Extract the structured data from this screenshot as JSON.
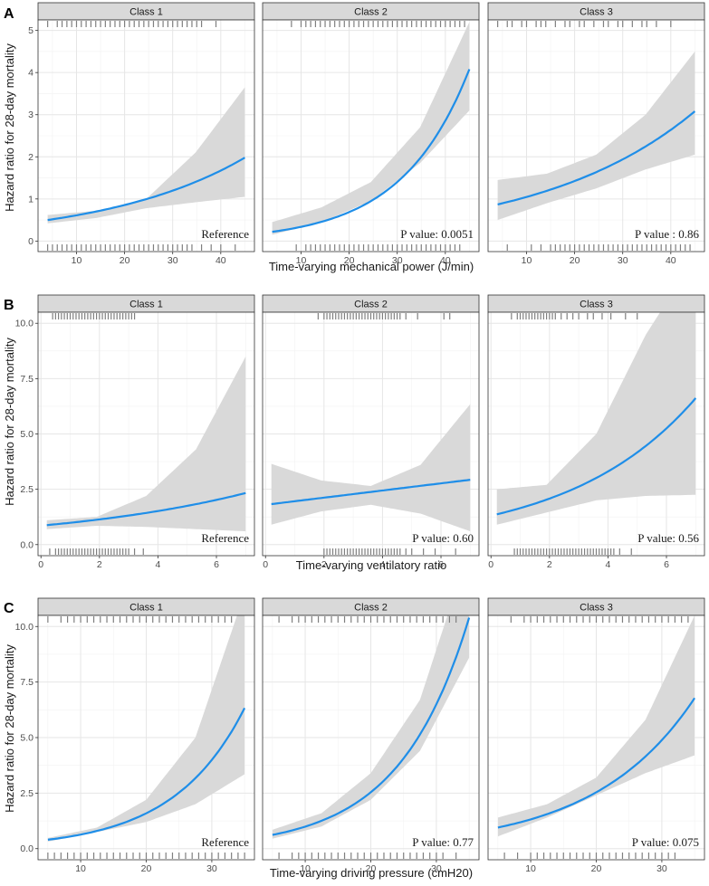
{
  "colors": {
    "line": "#1f8ee8",
    "band": "#d9d9d9",
    "rug": "#7f7f7f",
    "strip_bg": "#d9d9d9",
    "grid_major": "#e6e6e6",
    "grid_minor": "#f2f2f2",
    "panel_border": "#333333"
  },
  "chart_data": [
    {
      "panel": "A",
      "type": "line",
      "ylabel": "Hazard ratio for 28-day mortality",
      "xlabel": "Time-varying mechanical power (J/min)",
      "xlim": [
        2,
        47
      ],
      "ylim": [
        -0.25,
        5.25
      ],
      "x_ticks": [
        10,
        20,
        30,
        40
      ],
      "y_ticks": [
        0,
        1,
        2,
        3,
        4,
        5
      ],
      "y_tick_labels": [
        "0",
        "1",
        "2",
        "3",
        "4",
        "5"
      ],
      "facets": [
        {
          "title": "Class 1",
          "annotation": "Reference",
          "x_range": [
            4,
            45
          ],
          "curve": {
            "y0": 0.5,
            "y1": 1.98,
            "shape": "exp"
          },
          "band": {
            "lower": [
              0.42,
              0.55,
              0.78,
              0.92,
              1.05
            ],
            "upper": [
              0.62,
              0.72,
              1.0,
              2.1,
              3.65
            ]
          },
          "rug_top": [
            4,
            6,
            7,
            8,
            9,
            10,
            11,
            12,
            13,
            14,
            15,
            16,
            17,
            18,
            19,
            20,
            21,
            22,
            23,
            24,
            25,
            26,
            27,
            28,
            29,
            30,
            31,
            32,
            33,
            34,
            35,
            36,
            39
          ],
          "rug_bottom": [
            4,
            5,
            6,
            7,
            8,
            9,
            10,
            11,
            12,
            13,
            14,
            15,
            16,
            17,
            18,
            19,
            20,
            21,
            22,
            23,
            24,
            25,
            26,
            27,
            28,
            29,
            30,
            31,
            32,
            33,
            34,
            36,
            38,
            40,
            43
          ]
        },
        {
          "title": "Class 2",
          "annotation": "P value: 0.0051",
          "x_range": [
            4,
            45
          ],
          "curve": {
            "y0": 0.22,
            "y1": 4.08,
            "shape": "exp"
          },
          "band": {
            "lower": [
              0.15,
              0.45,
              0.95,
              1.85,
              3.1
            ],
            "upper": [
              0.45,
              0.8,
              1.4,
              2.7,
              5.2
            ]
          },
          "rug_top": [
            8,
            10,
            11,
            12,
            13,
            14,
            15,
            16,
            17,
            18,
            19,
            20,
            21,
            22,
            23,
            24,
            25,
            26,
            27,
            28,
            29,
            30,
            31,
            32,
            33,
            34,
            35,
            36,
            37,
            38,
            39,
            40,
            41,
            42,
            43,
            44
          ],
          "rug_bottom": [
            9,
            11,
            12,
            13,
            14,
            15,
            16,
            17,
            18,
            19,
            20,
            21,
            22,
            23,
            24,
            25,
            26,
            27,
            28,
            29,
            30,
            31,
            32,
            33,
            34,
            35,
            36,
            37,
            38,
            39,
            40,
            41,
            42,
            43
          ]
        },
        {
          "title": "Class 3",
          "annotation": "P value : 0.86",
          "x_range": [
            4,
            45
          ],
          "curve": {
            "y0": 0.87,
            "y1": 3.08,
            "shape": "exp"
          },
          "band": {
            "lower": [
              0.5,
              0.9,
              1.25,
              1.7,
              2.05
            ],
            "upper": [
              1.45,
              1.6,
              2.05,
              3.0,
              4.5
            ]
          },
          "rug_top": [
            4,
            6,
            7,
            9,
            10,
            12,
            13,
            14,
            16,
            18,
            19,
            21,
            22,
            24,
            26,
            27,
            29,
            30,
            32,
            34,
            35,
            37,
            40
          ],
          "rug_bottom": [
            6,
            11,
            13,
            15,
            16,
            17,
            18,
            19,
            20,
            21,
            22,
            23,
            24,
            25,
            26,
            27,
            28,
            29,
            30,
            31,
            32,
            33,
            34,
            35,
            36,
            37,
            38,
            39,
            40,
            41,
            42,
            43,
            44
          ]
        }
      ]
    },
    {
      "panel": "B",
      "type": "line",
      "ylabel": "Hazard ratio for 28-day mortality",
      "xlabel": "Time-varying ventilatory ratio",
      "xlim": [
        -0.1,
        7.3
      ],
      "ylim": [
        -0.5,
        10.5
      ],
      "x_ticks": [
        0,
        2,
        4,
        6
      ],
      "y_ticks": [
        0,
        2.5,
        5,
        7.5,
        10
      ],
      "y_tick_labels": [
        "0.0",
        "2.5",
        "5.0",
        "7.5",
        "10.0"
      ],
      "facets": [
        {
          "title": "Class 1",
          "annotation": "Reference",
          "x_range": [
            0.2,
            7
          ],
          "curve": {
            "y0": 0.88,
            "y1": 2.33,
            "shape": "exp"
          },
          "band": {
            "lower": [
              0.7,
              0.85,
              0.8,
              0.7,
              0.6
            ],
            "upper": [
              1.1,
              1.25,
              2.2,
              4.3,
              8.5
            ]
          },
          "rug_top": [
            0.4,
            0.5,
            0.6,
            0.7,
            0.8,
            0.9,
            1.0,
            1.1,
            1.2,
            1.3,
            1.4,
            1.5,
            1.6,
            1.7,
            1.8,
            1.9,
            2.0,
            2.1,
            2.2,
            2.3,
            2.4,
            2.5,
            2.6,
            2.7,
            2.8,
            2.9,
            3.0,
            3.1,
            3.2
          ],
          "rug_bottom": [
            0.3,
            0.5,
            0.6,
            0.7,
            0.8,
            0.9,
            1.0,
            1.1,
            1.2,
            1.3,
            1.4,
            1.5,
            1.6,
            1.7,
            1.8,
            1.9,
            2.0,
            2.1,
            2.2,
            2.3,
            2.4,
            2.5,
            2.6,
            2.7,
            2.8,
            2.9,
            3.0,
            3.2,
            3.5
          ]
        },
        {
          "title": "Class 2",
          "annotation": "P value: 0.60",
          "x_range": [
            0.2,
            7
          ],
          "curve": {
            "y0": 1.83,
            "y1": 2.93,
            "shape": "lin"
          },
          "band": {
            "lower": [
              0.9,
              1.5,
              1.8,
              1.4,
              0.6
            ],
            "upper": [
              3.65,
              2.9,
              2.65,
              3.6,
              6.35
            ]
          },
          "rug_top": [
            1.8,
            2.0,
            2.1,
            2.2,
            2.3,
            2.4,
            2.5,
            2.6,
            2.7,
            2.8,
            2.9,
            3.0,
            3.1,
            3.2,
            3.3,
            3.4,
            3.5,
            3.6,
            3.7,
            3.8,
            3.9,
            4.0,
            4.1,
            4.2,
            4.3,
            4.4,
            4.5,
            4.6,
            4.8,
            5.2,
            6.1,
            6.3
          ],
          "rug_bottom": [
            2.0,
            2.1,
            2.2,
            2.3,
            2.4,
            2.5,
            2.6,
            2.7,
            2.8,
            2.9,
            3.0,
            3.1,
            3.2,
            3.3,
            3.4,
            3.5,
            3.6,
            3.7,
            3.8,
            3.9,
            4.0,
            4.1,
            4.2,
            4.3,
            4.4,
            4.5,
            4.6,
            4.8,
            5.0,
            5.4,
            5.8,
            6.5
          ]
        },
        {
          "title": "Class 3",
          "annotation": "P value: 0.56",
          "x_range": [
            0.2,
            7
          ],
          "curve": {
            "y0": 1.37,
            "y1": 6.62,
            "shape": "exp"
          },
          "band": {
            "lower": [
              0.9,
              1.45,
              2.0,
              2.2,
              2.25
            ],
            "upper": [
              2.5,
              2.7,
              5.0,
              9.5,
              13.0
            ]
          },
          "rug_top": [
            0.7,
            0.9,
            1.0,
            1.1,
            1.2,
            1.3,
            1.4,
            1.5,
            1.6,
            1.7,
            1.8,
            1.9,
            2.0,
            2.1,
            2.2,
            2.4,
            2.6,
            2.8,
            3.0,
            3.3,
            3.5,
            3.8,
            4.1,
            4.6,
            5.0
          ],
          "rug_bottom": [
            0.8,
            0.9,
            1.0,
            1.1,
            1.2,
            1.3,
            1.4,
            1.5,
            1.6,
            1.7,
            1.8,
            1.9,
            2.0,
            2.1,
            2.2,
            2.3,
            2.4,
            2.5,
            2.6,
            2.7,
            2.8,
            2.9,
            3.0,
            3.1,
            3.2,
            3.3,
            3.4,
            3.5,
            3.6,
            3.7,
            3.8,
            3.9,
            4.0,
            4.1,
            4.2,
            4.4,
            4.8
          ]
        }
      ]
    },
    {
      "panel": "C",
      "type": "line",
      "ylabel": "Hazard ratio for 28-day mortality",
      "xlabel": "Time-varying driving pressure (cmH20)",
      "xlim": [
        3.5,
        36.5
      ],
      "ylim": [
        -0.5,
        10.5
      ],
      "x_ticks": [
        10,
        20,
        30
      ],
      "y_ticks": [
        0,
        2.5,
        5,
        7.5,
        10
      ],
      "y_tick_labels": [
        "0.0",
        "2.5",
        "5.0",
        "7.5",
        "10.0"
      ],
      "facets": [
        {
          "title": "Class 1",
          "annotation": "Reference",
          "x_range": [
            5,
            35
          ],
          "curve": {
            "y0": 0.4,
            "y1": 6.33,
            "shape": "exp"
          },
          "band": {
            "lower": [
              0.32,
              0.75,
              1.2,
              2.0,
              3.35
            ],
            "upper": [
              0.48,
              0.95,
              2.2,
              5.0,
              11.5
            ]
          },
          "rug_top": [
            5,
            7,
            8,
            9,
            10,
            11,
            12,
            13,
            14,
            15,
            16,
            17,
            18,
            19,
            20,
            21,
            22,
            23,
            24,
            25,
            26,
            27,
            28,
            29,
            30,
            31,
            32,
            33
          ],
          "rug_bottom": [
            5,
            6,
            7,
            8,
            9,
            10,
            11,
            12,
            13,
            14,
            15,
            16,
            17,
            18,
            19,
            20,
            21,
            22,
            23,
            24,
            25,
            26,
            27,
            28,
            29,
            30,
            31,
            32,
            33,
            34,
            35
          ]
        },
        {
          "title": "Class 2",
          "annotation": "P value: 0.77",
          "x_range": [
            5,
            35
          ],
          "curve": {
            "y0": 0.62,
            "y1": 10.4,
            "shape": "exp"
          },
          "band": {
            "lower": [
              0.45,
              1.0,
              2.2,
              4.4,
              8.6
            ],
            "upper": [
              0.85,
              1.6,
              3.4,
              6.7,
              13.5
            ]
          },
          "rug_top": [
            6,
            8,
            9,
            10,
            11,
            12,
            13,
            14,
            15,
            16,
            17,
            18,
            19,
            20,
            21,
            22,
            23,
            24,
            25,
            26,
            27,
            28,
            29,
            30,
            31,
            32,
            33
          ],
          "rug_bottom": [
            6,
            8,
            9,
            10,
            11,
            12,
            13,
            14,
            15,
            16,
            17,
            18,
            19,
            20,
            21,
            22,
            23,
            24,
            25,
            26,
            27,
            28,
            29,
            30,
            31,
            33
          ]
        },
        {
          "title": "Class 3",
          "annotation": "P value: 0.075",
          "x_range": [
            5,
            35
          ],
          "curve": {
            "y0": 0.95,
            "y1": 6.78,
            "shape": "exp"
          },
          "band": {
            "lower": [
              0.55,
              1.4,
              2.4,
              3.4,
              4.2
            ],
            "upper": [
              1.4,
              2.0,
              3.2,
              5.8,
              10.5
            ]
          },
          "rug_top": [
            7,
            9,
            10,
            11,
            12,
            13,
            14,
            15,
            16,
            17,
            18,
            19,
            20,
            21,
            22,
            23,
            24,
            25,
            26,
            27,
            28,
            29,
            30,
            31,
            32,
            33,
            34
          ],
          "rug_bottom": [
            6,
            8,
            10,
            11,
            12,
            13,
            14,
            15,
            16,
            17,
            18,
            19,
            20,
            21,
            22,
            23,
            24,
            25,
            26,
            27,
            28,
            29,
            30,
            31,
            32
          ]
        }
      ]
    }
  ]
}
